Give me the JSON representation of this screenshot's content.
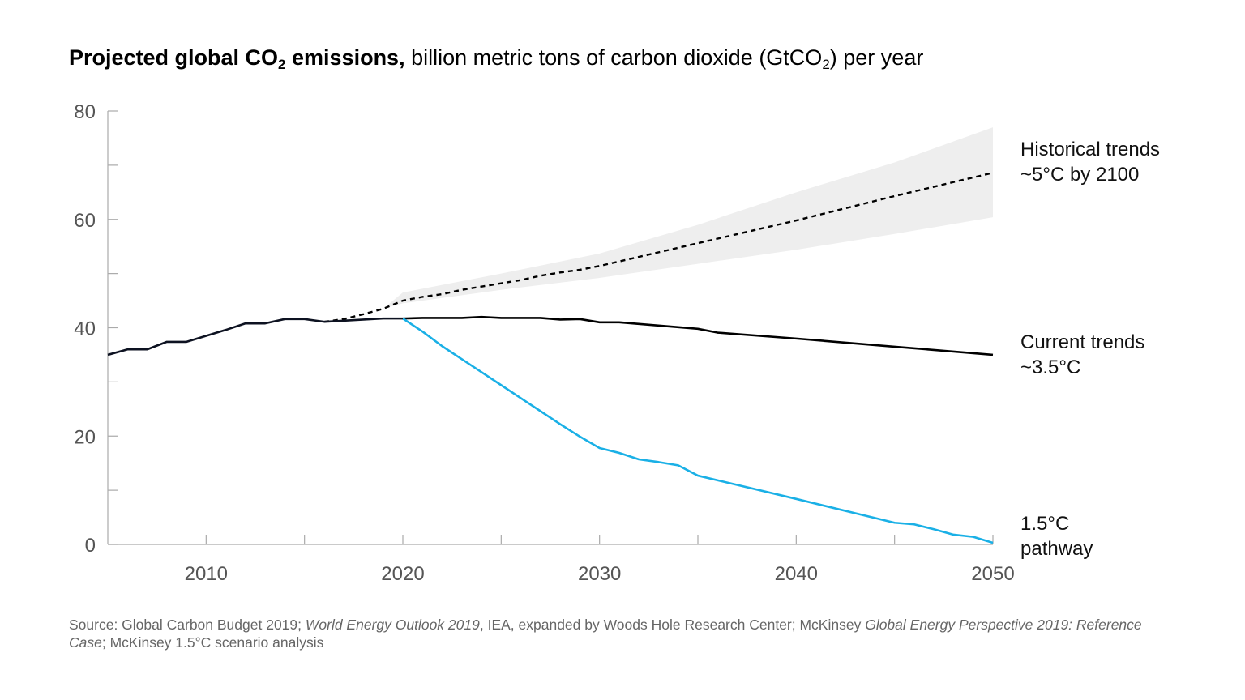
{
  "title": {
    "bold_prefix": "Projected global CO",
    "bold_sub": "2",
    "bold_suffix": " emissions,",
    "rest_prefix": " billion metric tons of carbon dioxide (GtCO",
    "rest_sub": "2",
    "rest_suffix": ") per year"
  },
  "source": [
    {
      "text": "Source: Global Carbon Budget 2019; ",
      "italic": false
    },
    {
      "text": "World Energy Outlook 2019",
      "italic": true
    },
    {
      "text": ", IEA, expanded by Woods Hole Research Center; McKinsey ",
      "italic": false
    },
    {
      "text": "Global Energy Perspective 2019: Reference Case",
      "italic": true
    },
    {
      "text": "; McKinsey 1.5°C scenario analysis",
      "italic": false
    }
  ],
  "chart_data": {
    "type": "line",
    "xlim": [
      2005,
      2050
    ],
    "ylim": [
      0,
      80
    ],
    "x_ticks": [
      2010,
      2020,
      2030,
      2040,
      2050
    ],
    "y_ticks": [
      0,
      20,
      40,
      60,
      80
    ],
    "grid": false,
    "colors": {
      "historical": "#0d1221",
      "current": "#000000",
      "pathway": "#1ab0e6",
      "band": "#eeeeee",
      "axis": "#aaaaaa"
    },
    "series": [
      {
        "key": "historical",
        "style": "solid",
        "x": [
          2005,
          2006,
          2007,
          2008,
          2009,
          2010,
          2011,
          2012,
          2013,
          2014,
          2015,
          2016,
          2017,
          2018,
          2019,
          2020
        ],
        "y": [
          35.0,
          36.0,
          36.0,
          37.4,
          37.4,
          38.5,
          39.6,
          40.8,
          40.8,
          41.6,
          41.6,
          41.1,
          41.3,
          41.5,
          41.7,
          41.7
        ]
      },
      {
        "key": "current",
        "name": "Current trends\n~3.5°C",
        "style": "solid",
        "x": [
          2020,
          2021,
          2022,
          2023,
          2024,
          2025,
          2026,
          2027,
          2028,
          2029,
          2030,
          2031,
          2032,
          2033,
          2034,
          2035,
          2036,
          2040,
          2045,
          2050
        ],
        "y": [
          41.7,
          41.8,
          41.8,
          41.8,
          42.0,
          41.8,
          41.8,
          41.8,
          41.5,
          41.6,
          41.0,
          41.0,
          40.7,
          40.4,
          40.1,
          39.8,
          39.1,
          38.0,
          36.5,
          35.0
        ]
      },
      {
        "key": "pathway",
        "name": "1.5°C\npathway",
        "style": "solid",
        "x": [
          2020,
          2021,
          2022,
          2023,
          2024,
          2025,
          2026,
          2027,
          2028,
          2029,
          2030,
          2031,
          2032,
          2033,
          2034,
          2035,
          2040,
          2045,
          2046,
          2047,
          2048,
          2049,
          2050
        ],
        "y": [
          41.7,
          39.3,
          36.6,
          34.2,
          31.8,
          29.4,
          27.0,
          24.6,
          22.2,
          19.9,
          17.8,
          16.9,
          15.7,
          15.2,
          14.6,
          12.7,
          8.4,
          4.0,
          3.7,
          2.8,
          1.8,
          1.4,
          0.3
        ]
      },
      {
        "key": "historical_trends",
        "name": "Historical trends\n~5°C by 2100",
        "style": "dashed",
        "x": [
          2016,
          2017,
          2018,
          2019,
          2020,
          2021,
          2022,
          2023,
          2024,
          2025,
          2026,
          2027,
          2028,
          2029,
          2030,
          2035,
          2040,
          2045,
          2050
        ],
        "y": [
          41.1,
          41.6,
          42.5,
          43.5,
          45.0,
          45.7,
          46.2,
          47.0,
          47.6,
          48.2,
          48.8,
          49.6,
          50.2,
          50.7,
          51.4,
          55.6,
          59.8,
          64.3,
          68.6
        ]
      }
    ],
    "band": {
      "key": "historical_trends_range",
      "x": [
        2019,
        2020,
        2025,
        2030,
        2035,
        2040,
        2045,
        2050
      ],
      "upper": [
        43.5,
        46.5,
        50.0,
        53.7,
        59.0,
        65.0,
        70.5,
        77.0
      ],
      "lower": [
        43.5,
        44.5,
        47.0,
        49.2,
        51.8,
        54.4,
        57.3,
        60.4
      ]
    }
  }
}
